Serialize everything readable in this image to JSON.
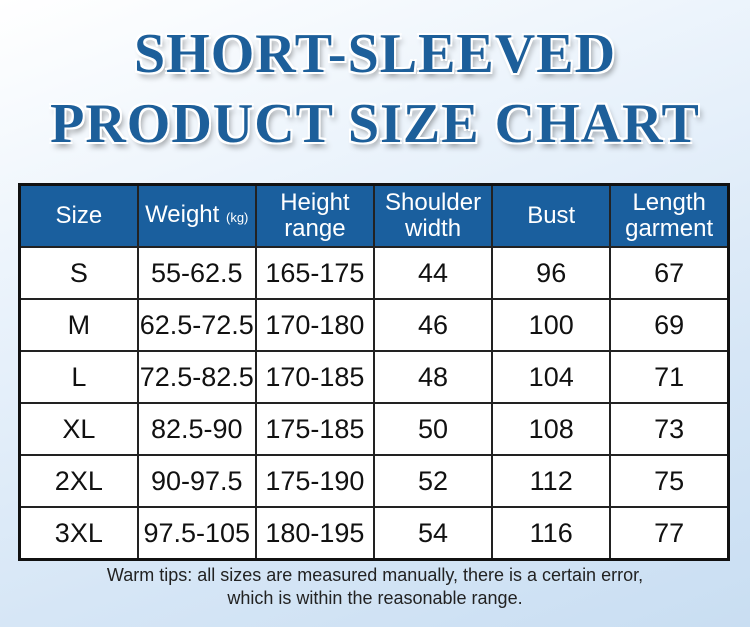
{
  "title": {
    "line1": "SHORT-SLEEVED",
    "line2": "PRODUCT SIZE CHART"
  },
  "colors": {
    "title": "#1d5f9a",
    "header_bg": "#1a5f9e",
    "header_text": "#ffffff"
  },
  "table": {
    "headers": [
      {
        "main": "Size"
      },
      {
        "main": "Weight ",
        "unit": "(kg)"
      },
      {
        "main": "Height",
        "sub": "range"
      },
      {
        "main": "Shoulder",
        "sub": "width"
      },
      {
        "main": "Bust"
      },
      {
        "main": "Length",
        "sub": "garment"
      }
    ],
    "rows": [
      [
        "S",
        "55-62.5",
        "165-175",
        "44",
        "96",
        "67"
      ],
      [
        "M",
        "62.5-72.5",
        "170-180",
        "46",
        "100",
        "69"
      ],
      [
        "L",
        "72.5-82.5",
        "170-185",
        "48",
        "104",
        "71"
      ],
      [
        "XL",
        "82.5-90",
        "175-185",
        "50",
        "108",
        "73"
      ],
      [
        "2XL",
        "90-97.5",
        "175-190",
        "52",
        "112",
        "75"
      ],
      [
        "3XL",
        "97.5-105",
        "180-195",
        "54",
        "116",
        "77"
      ]
    ]
  },
  "footer": {
    "line1": "Warm tips: all sizes are measured manually, there is a certain error,",
    "line2": "which is within the reasonable range."
  }
}
